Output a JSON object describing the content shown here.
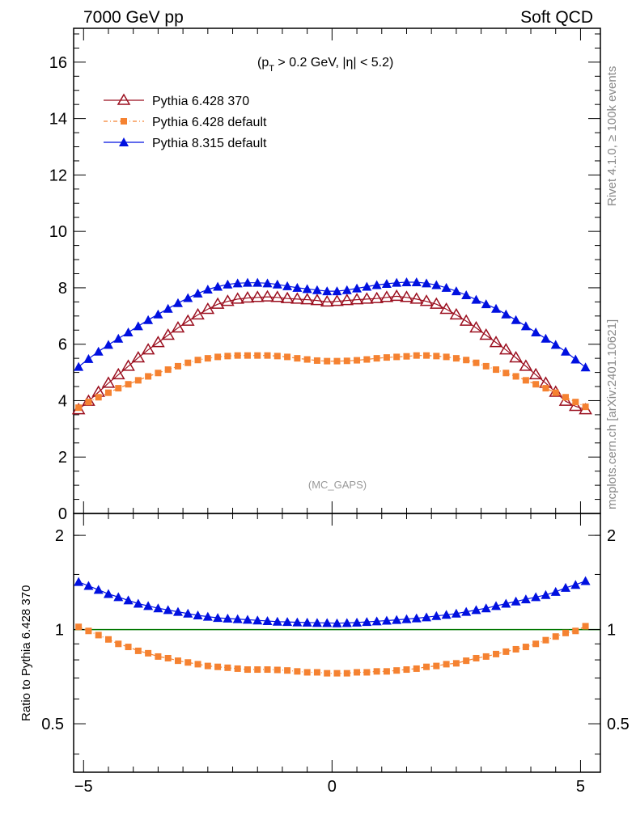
{
  "header": {
    "left": "7000 GeV pp",
    "right": "Soft QCD"
  },
  "side_labels": {
    "rivet": "Rivet 4.1.0, ≥ 100k events",
    "mcplots": "mcplots.cern.ch [arXiv:2401.10621]"
  },
  "annotation": {
    "cut_prefix": "(p",
    "cut_sub": "T",
    "cut_suffix": " > 0.2 GeV, |η| < 5.2)",
    "analysis": "(MC_GAPS)"
  },
  "colors": {
    "p6_370": "#9b0f1f",
    "p6_default": "#f58231",
    "p8_default": "#0010e0",
    "ref_line": "#007700"
  },
  "chart_data": [
    {
      "type": "scatter",
      "panel": "main",
      "xlim": [
        -5.2,
        5.4
      ],
      "ylim": [
        0,
        17.2
      ],
      "yticks": [
        0,
        2,
        4,
        6,
        8,
        10,
        12,
        14,
        16
      ],
      "yticklabels": [
        "0",
        "2",
        "4",
        "6",
        "8",
        "10",
        "12",
        "14",
        "16"
      ],
      "legend_position": "top-left",
      "x": [
        -5.1,
        -4.9,
        -4.7,
        -4.5,
        -4.3,
        -4.1,
        -3.9,
        -3.7,
        -3.5,
        -3.3,
        -3.1,
        -2.9,
        -2.7,
        -2.5,
        -2.3,
        -2.1,
        -1.9,
        -1.7,
        -1.5,
        -1.3,
        -1.1,
        -0.9,
        -0.7,
        -0.5,
        -0.3,
        -0.1,
        0.1,
        0.3,
        0.5,
        0.7,
        0.9,
        1.1,
        1.3,
        1.5,
        1.7,
        1.9,
        2.1,
        2.3,
        2.5,
        2.7,
        2.9,
        3.1,
        3.3,
        3.5,
        3.7,
        3.9,
        4.1,
        4.3,
        4.5,
        4.7,
        4.9,
        5.1
      ],
      "series": [
        {
          "name": "Pythia 6.428 370",
          "marker": "open-triangle",
          "values": [
            3.68,
            3.98,
            4.3,
            4.62,
            4.92,
            5.22,
            5.52,
            5.8,
            6.06,
            6.32,
            6.58,
            6.82,
            7.04,
            7.24,
            7.42,
            7.52,
            7.6,
            7.64,
            7.66,
            7.68,
            7.66,
            7.62,
            7.6,
            7.58,
            7.55,
            7.5,
            7.52,
            7.55,
            7.58,
            7.6,
            7.62,
            7.66,
            7.7,
            7.66,
            7.6,
            7.52,
            7.42,
            7.24,
            7.04,
            6.82,
            6.58,
            6.32,
            6.06,
            5.8,
            5.52,
            5.22,
            4.92,
            4.62,
            4.3,
            3.98,
            3.8,
            3.68
          ]
        },
        {
          "name": "Pythia 6.428 default",
          "marker": "filled-square",
          "values": [
            3.75,
            3.95,
            4.12,
            4.28,
            4.44,
            4.58,
            4.72,
            4.86,
            4.98,
            5.1,
            5.22,
            5.34,
            5.44,
            5.5,
            5.55,
            5.58,
            5.6,
            5.6,
            5.6,
            5.6,
            5.58,
            5.55,
            5.5,
            5.46,
            5.42,
            5.4,
            5.4,
            5.41,
            5.43,
            5.46,
            5.5,
            5.53,
            5.55,
            5.57,
            5.6,
            5.6,
            5.58,
            5.55,
            5.5,
            5.44,
            5.34,
            5.22,
            5.1,
            4.98,
            4.86,
            4.72,
            4.58,
            4.44,
            4.28,
            4.12,
            3.95,
            3.78
          ]
        },
        {
          "name": "Pythia 8.315 default",
          "marker": "filled-triangle",
          "values": [
            5.2,
            5.48,
            5.74,
            5.98,
            6.2,
            6.42,
            6.64,
            6.86,
            7.06,
            7.26,
            7.46,
            7.64,
            7.8,
            7.94,
            8.04,
            8.12,
            8.16,
            8.18,
            8.18,
            8.16,
            8.12,
            8.06,
            8.0,
            7.96,
            7.92,
            7.88,
            7.88,
            7.92,
            7.98,
            8.04,
            8.1,
            8.14,
            8.18,
            8.2,
            8.2,
            8.16,
            8.1,
            8.0,
            7.88,
            7.74,
            7.58,
            7.42,
            7.26,
            7.06,
            6.86,
            6.64,
            6.42,
            6.2,
            5.98,
            5.74,
            5.46,
            5.18
          ]
        }
      ]
    },
    {
      "type": "scatter",
      "panel": "ratio",
      "ylabel": "Ratio to Pythia 6.428 370",
      "xlim": [
        -5.2,
        5.4
      ],
      "ylim": [
        0.35,
        2.35
      ],
      "yscale": "log",
      "yticks": [
        0.5,
        1,
        2
      ],
      "yticklabels": [
        "0.5",
        "1",
        "2"
      ],
      "xticks": [
        -5,
        0,
        5
      ],
      "xticklabels": [
        "−5",
        "0",
        "5"
      ],
      "reference": 1.0,
      "series": [
        {
          "name": "Pythia 6.428 default",
          "marker": "filled-square",
          "values": [
            1.02,
            0.99,
            0.96,
            0.93,
            0.9,
            0.88,
            0.855,
            0.84,
            0.82,
            0.81,
            0.795,
            0.785,
            0.775,
            0.765,
            0.76,
            0.755,
            0.75,
            0.745,
            0.745,
            0.745,
            0.743,
            0.74,
            0.735,
            0.73,
            0.73,
            0.725,
            0.725,
            0.725,
            0.73,
            0.73,
            0.735,
            0.735,
            0.74,
            0.745,
            0.75,
            0.76,
            0.765,
            0.775,
            0.78,
            0.795,
            0.81,
            0.82,
            0.835,
            0.85,
            0.865,
            0.88,
            0.9,
            0.925,
            0.95,
            0.975,
            0.99,
            1.025
          ]
        },
        {
          "name": "Pythia 8.315 default",
          "marker": "filled-triangle",
          "values": [
            1.42,
            1.38,
            1.34,
            1.3,
            1.27,
            1.24,
            1.21,
            1.19,
            1.17,
            1.155,
            1.14,
            1.125,
            1.11,
            1.1,
            1.09,
            1.085,
            1.08,
            1.075,
            1.07,
            1.065,
            1.06,
            1.058,
            1.055,
            1.053,
            1.051,
            1.05,
            1.048,
            1.05,
            1.053,
            1.058,
            1.063,
            1.068,
            1.074,
            1.08,
            1.087,
            1.095,
            1.105,
            1.115,
            1.125,
            1.14,
            1.155,
            1.17,
            1.19,
            1.21,
            1.23,
            1.25,
            1.27,
            1.29,
            1.32,
            1.36,
            1.39,
            1.43
          ]
        }
      ]
    }
  ]
}
